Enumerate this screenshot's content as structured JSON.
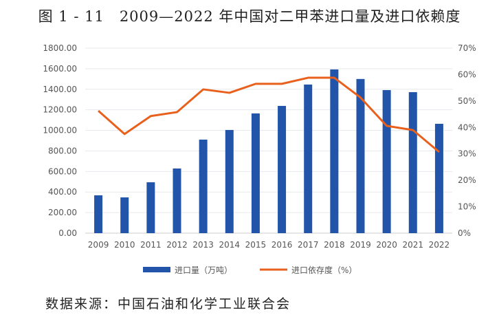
{
  "title": "图 1 - 11　2009—2022 年中国对二甲苯进口量及进口依赖度",
  "source": "数据来源：中国石油和化学工业联合会",
  "chart_data": {
    "type": "bar+line",
    "categories": [
      "2009",
      "2010",
      "2011",
      "2012",
      "2013",
      "2014",
      "2015",
      "2016",
      "2017",
      "2018",
      "2019",
      "2020",
      "2021",
      "2022"
    ],
    "series": [
      {
        "name": "进口量（万吨）",
        "type": "bar",
        "axis": "left",
        "color": "#2255aa",
        "values": [
          368,
          348,
          495,
          629,
          910,
          1004,
          1165,
          1238,
          1446,
          1593,
          1500,
          1392,
          1372,
          1064
        ]
      },
      {
        "name": "进口依存度（%）",
        "type": "line",
        "axis": "right",
        "color": "#e8601c",
        "values": [
          46.3,
          37.5,
          44.3,
          45.8,
          54.4,
          53.1,
          56.5,
          56.5,
          58.8,
          58.8,
          51.3,
          40.6,
          39.0,
          30.7
        ]
      }
    ],
    "ylim": [
      0,
      1800
    ],
    "y_ticks": [
      "0.00",
      "200.00",
      "400.00",
      "600.00",
      "800.00",
      "1000.00",
      "1200.00",
      "1400.00",
      "1600.00",
      "1800.00"
    ],
    "y2lim": [
      0,
      70
    ],
    "y2_ticks": [
      "0%",
      "10%",
      "20%",
      "30%",
      "40%",
      "50%",
      "60%",
      "70%"
    ],
    "grid": true,
    "legend": "bottom"
  }
}
